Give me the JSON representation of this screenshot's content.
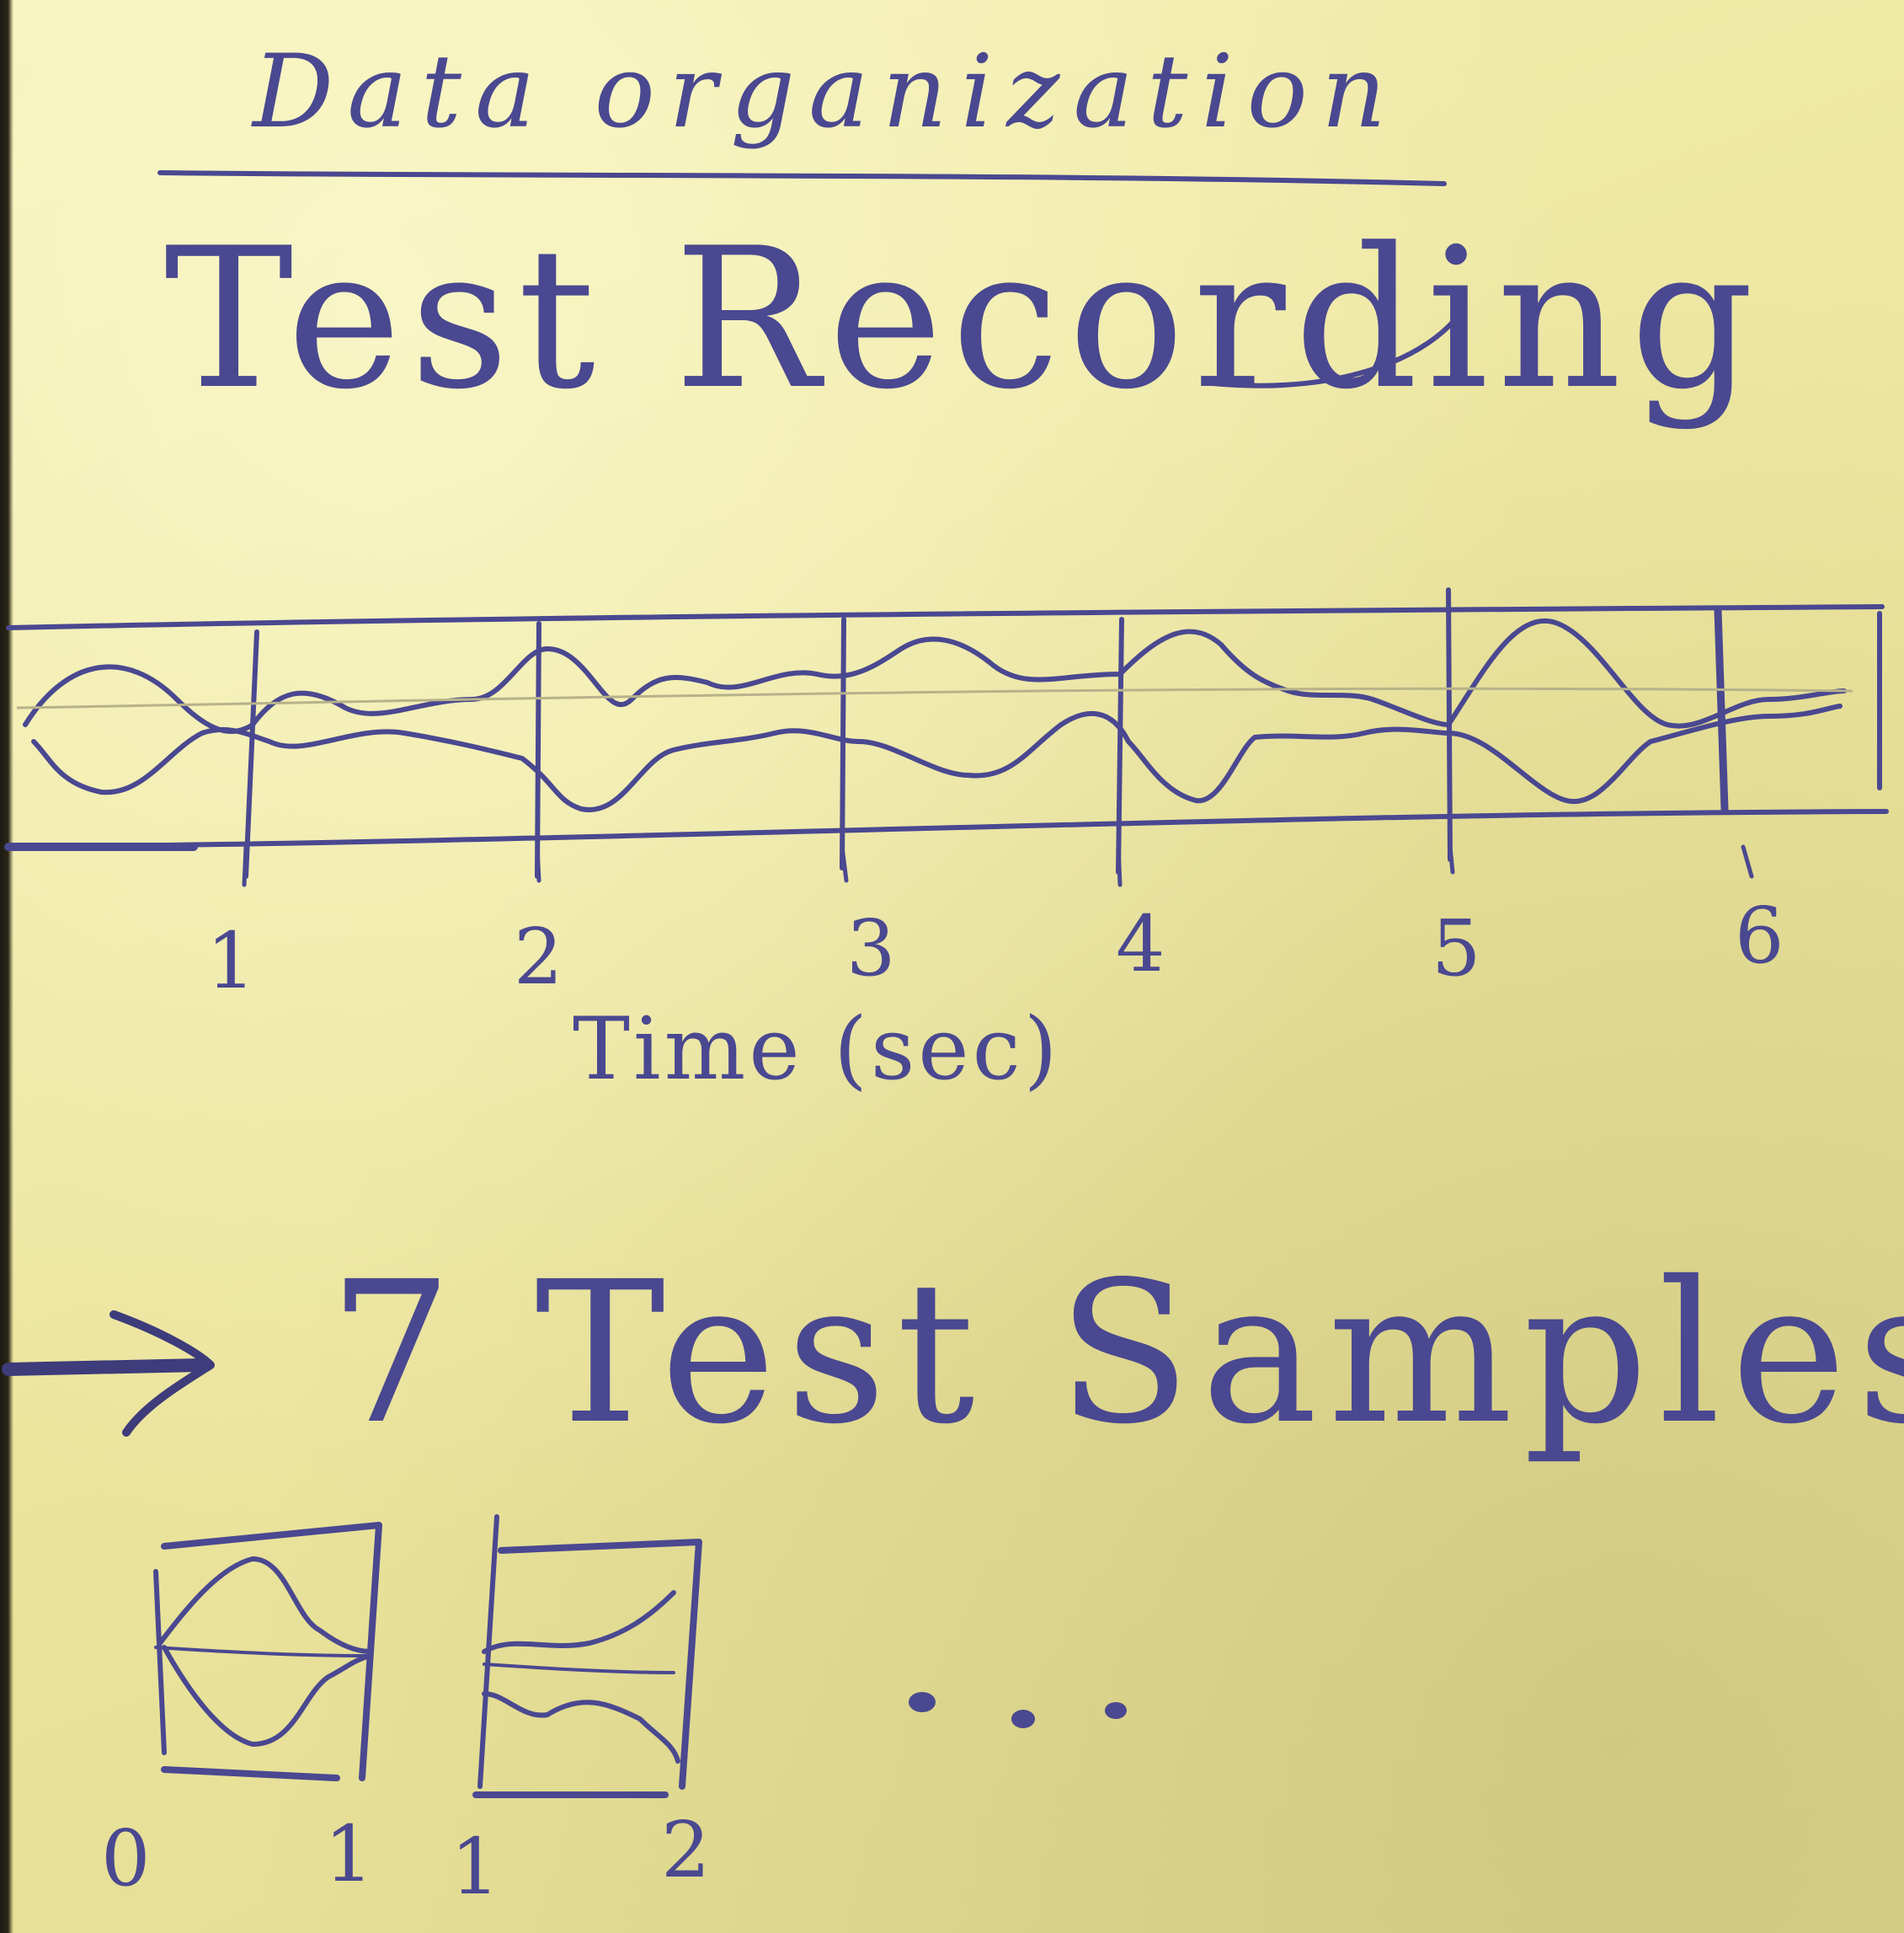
{
  "note": {
    "title": "Data organization",
    "heading": "Test Recording"
  },
  "recording": {
    "time_ticks": [
      "1",
      "2",
      "3",
      "4",
      "5",
      "6"
    ],
    "axis_label": "Time (sec)"
  },
  "samples": {
    "label": "7 Test Samples",
    "sample_0": {
      "start": "0",
      "end": "1"
    },
    "sample_1": {
      "start": "1",
      "end": "2"
    },
    "ellipsis": "..."
  },
  "colors": {
    "paper": "#efe9a6",
    "ink": "#4a4890",
    "pencil": "#b7b28a"
  }
}
